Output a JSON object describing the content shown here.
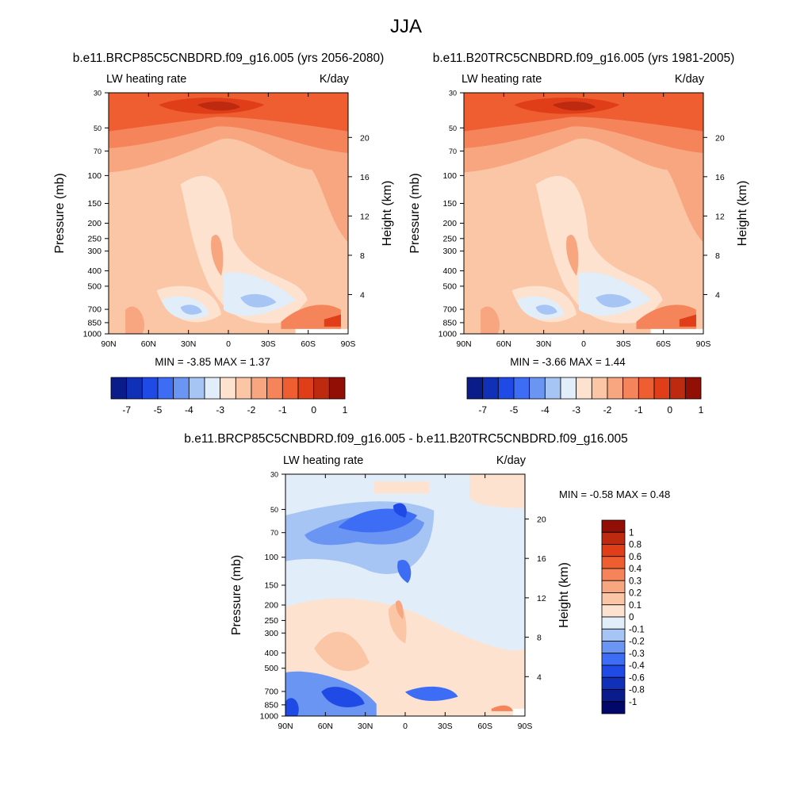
{
  "title": "JJA",
  "chart_data": [
    {
      "type": "heatmap",
      "title": "b.e11.BRCP85C5CNBDRD.f09_g16.005 (yrs 2056-2080)",
      "left_label": "LW heating rate",
      "right_label": "K/day",
      "ylabel": "Pressure (mb)",
      "ylabel_right": "Height (km)",
      "xticks": [
        "90N",
        "60N",
        "30N",
        "0",
        "30S",
        "60S",
        "90S"
      ],
      "yticks": [
        "30",
        "50",
        "70",
        "100",
        "150",
        "200",
        "250",
        "300",
        "400",
        "500",
        "700",
        "850",
        "1000"
      ],
      "height_ticks": [
        "20",
        "16",
        "12",
        "8",
        "4"
      ],
      "stats": "MIN =  -3.85  MAX =   1.37",
      "colorbar_labels": [
        "-7",
        "-5",
        "-4",
        "-3",
        "-2",
        "-1",
        "0",
        "1"
      ],
      "colors": [
        "#0a1c8a",
        "#1030b8",
        "#1f4ae6",
        "#3d6df5",
        "#6a95f2",
        "#a6c4f4",
        "#e1edf8",
        "#fde3cf",
        "#fbc6a6",
        "#f8a680",
        "#f5845a",
        "#ef5e31",
        "#e03e18",
        "#bd2a10",
        "#920f06"
      ]
    },
    {
      "type": "heatmap",
      "title": "b.e11.B20TRC5CNBDRD.f09_g16.005 (yrs 1981-2005)",
      "left_label": "LW heating rate",
      "right_label": "K/day",
      "ylabel": "Pressure (mb)",
      "ylabel_right": "Height (km)",
      "xticks": [
        "90N",
        "60N",
        "30N",
        "0",
        "30S",
        "60S",
        "90S"
      ],
      "yticks": [
        "30",
        "50",
        "70",
        "100",
        "150",
        "200",
        "250",
        "300",
        "400",
        "500",
        "700",
        "850",
        "1000"
      ],
      "height_ticks": [
        "20",
        "16",
        "12",
        "8",
        "4"
      ],
      "stats": "MIN =  -3.66  MAX =   1.44",
      "colorbar_labels": [
        "-7",
        "-5",
        "-4",
        "-3",
        "-2",
        "-1",
        "0",
        "1"
      ],
      "colors": [
        "#0a1c8a",
        "#1030b8",
        "#1f4ae6",
        "#3d6df5",
        "#6a95f2",
        "#a6c4f4",
        "#e1edf8",
        "#fde3cf",
        "#fbc6a6",
        "#f8a680",
        "#f5845a",
        "#ef5e31",
        "#e03e18",
        "#bd2a10",
        "#920f06"
      ]
    },
    {
      "type": "heatmap",
      "title": "b.e11.BRCP85C5CNBDRD.f09_g16.005 - b.e11.B20TRC5CNBDRD.f09_g16.005",
      "left_label": "LW heating rate",
      "right_label": "K/day",
      "ylabel": "Pressure (mb)",
      "ylabel_right": "Height (km)",
      "xticks": [
        "90N",
        "60N",
        "30N",
        "0",
        "30S",
        "60S",
        "90S"
      ],
      "yticks": [
        "30",
        "50",
        "70",
        "100",
        "150",
        "200",
        "250",
        "300",
        "400",
        "500",
        "700",
        "850",
        "1000"
      ],
      "height_ticks": [
        "20",
        "16",
        "12",
        "8",
        "4"
      ],
      "stats": "MIN =  -0.58  MAX =   0.48",
      "colorbar_labels": [
        "1",
        "0.8",
        "0.6",
        "0.4",
        "0.3",
        "0.2",
        "0.1",
        "0",
        "-0.1",
        "-0.2",
        "-0.3",
        "-0.4",
        "-0.6",
        "-0.8",
        "-1"
      ],
      "colors": [
        "#920f06",
        "#bd2a10",
        "#e03e18",
        "#ef5e31",
        "#f5845a",
        "#f8a680",
        "#fbc6a6",
        "#fde3cf",
        "#e1edf8",
        "#a6c4f4",
        "#6a95f2",
        "#3d6df5",
        "#1f4ae6",
        "#1030b8",
        "#0a1c8a",
        "#02086a"
      ]
    }
  ]
}
